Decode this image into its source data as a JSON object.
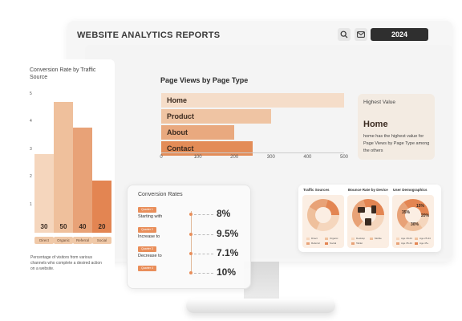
{
  "header": {
    "title": "WEBSITE ANALYTICS REPORTS",
    "year": "2024",
    "search_icon": "search-icon",
    "mail_icon": "mail-icon"
  },
  "page_views": {
    "title": "Page Views by Page Type",
    "chart_data": {
      "type": "bar",
      "orientation": "horizontal",
      "categories": [
        "Home",
        "Product",
        "About",
        "Contact"
      ],
      "values": [
        500,
        300,
        200,
        250
      ],
      "xlim": [
        0,
        500
      ],
      "ticks": [
        "0",
        "100",
        "200",
        "300",
        "400",
        "500"
      ],
      "colors": [
        "#f5ddc9",
        "#efc4a3",
        "#e9a97f",
        "#e38c57"
      ]
    },
    "highest": {
      "label": "Highest Value",
      "value": "Home",
      "description": "home has the highest value for Page Views by Page Type among the others"
    }
  },
  "conversion_traffic": {
    "title": "Conversion Rate by Traffic Source",
    "chart_data": {
      "type": "bar",
      "categories": [
        "Direct",
        "Organic",
        "Referral",
        "Social"
      ],
      "values": [
        30,
        50,
        40,
        20
      ],
      "ylim": [
        0,
        5
      ],
      "yticks": [
        "1",
        "2",
        "3",
        "4",
        "5"
      ],
      "colors": [
        "#f5d6bd",
        "#efc09c",
        "#e8a277",
        "#e38552"
      ]
    },
    "note": "Percentage of visitors from various channels who complete a desired action on a website."
  },
  "conversion_rates": {
    "title": "Conversion Rates",
    "items": [
      {
        "tag": "Quarter 1",
        "desc": "Starting with",
        "value": "8%"
      },
      {
        "tag": "Quarter 2",
        "desc": "Increase to",
        "value": "9.5%"
      },
      {
        "tag": "Quarter 3",
        "desc": "Decrease to",
        "value": "7.1%"
      },
      {
        "tag": "Quarter 4",
        "desc": "",
        "value": "10%"
      }
    ]
  },
  "mini": {
    "traffic_title": "Traffic Sources",
    "bounce_title": "Bounce Rate by Device",
    "demo_title": "User Demographics",
    "traffic_legend": [
      "Direct",
      "Organic",
      "Referral",
      "Social"
    ],
    "bounce_legend": [
      "Desktop",
      "Mobile",
      "Tablet"
    ],
    "demo_legend": [
      "Age 18-24",
      "Age 25-34",
      "Age 35-44",
      "Age 45+"
    ],
    "demo_values": [
      "15%",
      "35%",
      "20%",
      "30%"
    ]
  }
}
